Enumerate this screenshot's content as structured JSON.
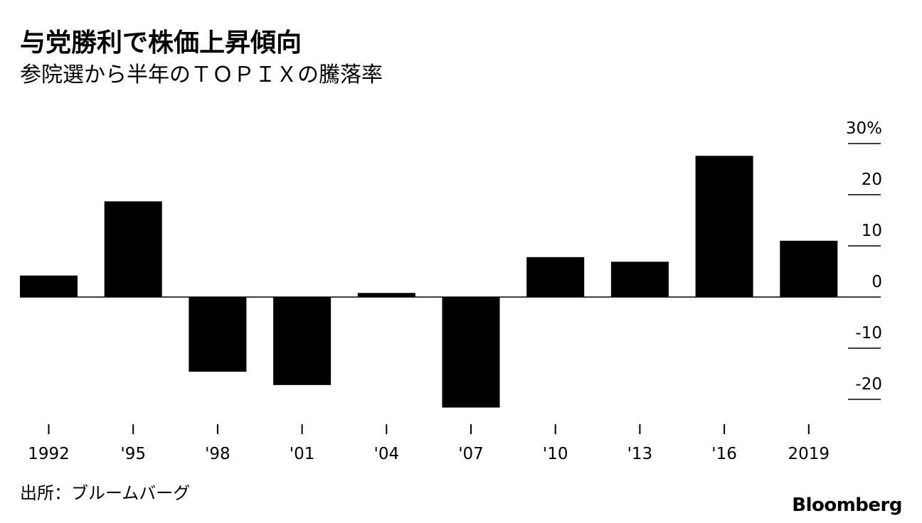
{
  "header": {
    "title": "与党勝利で株価上昇傾向",
    "subtitle": "参院選から半年のＴＯＰＩＸの騰落率"
  },
  "footer": {
    "source": "出所：ブルームバーグ",
    "brand": "Bloomberg"
  },
  "colors": {
    "bar": "#000000",
    "axis": "#000000",
    "background": "#ffffff"
  },
  "chart_data": {
    "type": "bar",
    "title": "与党勝利で株価上昇傾向",
    "subtitle": "参院選から半年のＴＯＰＩＸの騰落率",
    "categories": [
      "1992",
      "'95",
      "'98",
      "'01",
      "'04",
      "'07",
      "'10",
      "'13",
      "'16",
      "2019"
    ],
    "values": [
      4.2,
      18.7,
      -14.6,
      -17.2,
      0.8,
      -21.6,
      7.8,
      6.9,
      27.6,
      11.0
    ],
    "xlabel": "",
    "ylabel": "",
    "ylim": [
      -25,
      30
    ],
    "yticks": [
      30,
      20,
      10,
      0,
      -10,
      -20
    ],
    "ytick_labels": [
      "30%",
      "20",
      "10",
      "0",
      "-10",
      "-20"
    ],
    "y_axis_side": "right",
    "grid": false,
    "legend": "none"
  }
}
